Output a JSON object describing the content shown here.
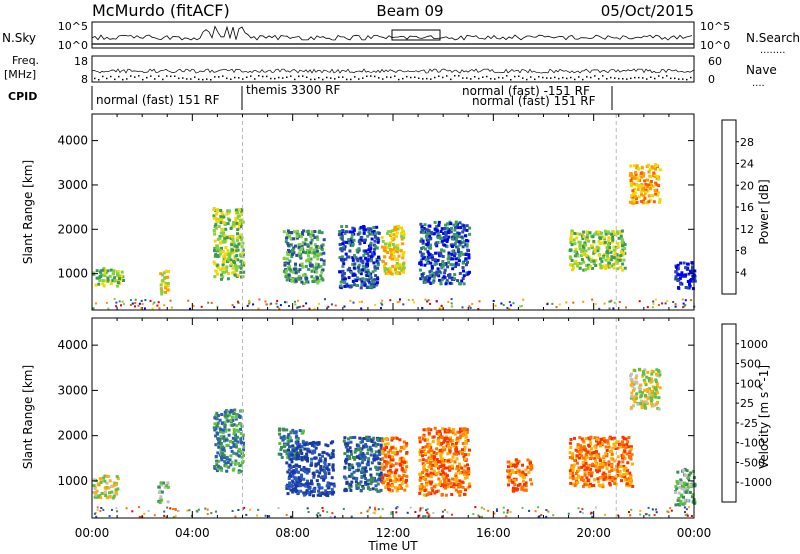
{
  "header": {
    "station": "McMurdo (fitACF)",
    "beam": "Beam 09",
    "date": "05/Oct/2015"
  },
  "top_panels": {
    "nsky_label": "N.Sky",
    "nsearch_label": "N.Search",
    "nsky_ticks": [
      "10^5",
      "10^0"
    ],
    "nsearch_ticks": [
      "10^5",
      "10^0"
    ],
    "freq_label": "Freq.",
    "freq_unit": "[MHz]",
    "freq_ticks": [
      "18",
      "8"
    ],
    "nave_label": "Nave",
    "nave_ticks": [
      "60",
      "0"
    ],
    "cpid_label": "CPID",
    "cpid_segments": [
      {
        "text": "normal (fast) 151 RF"
      },
      {
        "text": "themis 3300 RF"
      },
      {
        "text": "normal (fast) -151 RF"
      },
      {
        "text": "normal (fast) 151 RF"
      }
    ]
  },
  "chart_data": [
    {
      "type": "heatmap",
      "panel": "power",
      "ylabel": "Slant Range [km]",
      "xlabel": "Time UT",
      "x_ticks": [
        "00:00",
        "04:00",
        "08:00",
        "12:00",
        "16:00",
        "20:00",
        "00:00"
      ],
      "x_hours": [
        0,
        4,
        8,
        12,
        16,
        20,
        24
      ],
      "xlim": [
        0,
        24
      ],
      "y_ticks": [
        1000,
        2000,
        3000,
        4000
      ],
      "ylim": [
        180,
        4600
      ],
      "colorbar_label": "Power [dB]",
      "colorbar_ticks": [
        "28",
        "24",
        "20",
        "16",
        "12",
        "8",
        "4"
      ],
      "colorbar_colors": [
        "#e00000",
        "#ff5a00",
        "#ff9a00",
        "#f0d800",
        "#80d040",
        "#3a9a5a",
        "#2a4aa8",
        "#0000ff"
      ],
      "clusters": [
        {
          "t0": 0.0,
          "t1": 1.2,
          "r0": 750,
          "r1": 1150,
          "level": 4
        },
        {
          "t0": 2.6,
          "t1": 3.0,
          "r0": 550,
          "r1": 1100,
          "level": 3
        },
        {
          "t0": 4.8,
          "t1": 6.0,
          "r0": 900,
          "r1": 2500,
          "level": 4
        },
        {
          "t0": 7.6,
          "t1": 9.2,
          "r0": 800,
          "r1": 2000,
          "level": 5
        },
        {
          "t0": 9.8,
          "t1": 11.4,
          "r0": 700,
          "r1": 2100,
          "level": 6
        },
        {
          "t0": 11.5,
          "t1": 12.4,
          "r0": 1000,
          "r1": 2100,
          "level": 3
        },
        {
          "t0": 13.0,
          "t1": 15.0,
          "r0": 800,
          "r1": 2200,
          "level": 6
        },
        {
          "t0": 19.0,
          "t1": 21.2,
          "r0": 1100,
          "r1": 2000,
          "level": 4
        },
        {
          "t0": 21.4,
          "t1": 22.6,
          "r0": 2600,
          "r1": 3500,
          "level": 2
        },
        {
          "t0": 23.2,
          "t1": 24.0,
          "r0": 650,
          "r1": 1300,
          "level": 7
        }
      ]
    },
    {
      "type": "heatmap",
      "panel": "velocity",
      "ylabel": "Slant Range [km]",
      "xlabel": "Time UT",
      "x_ticks": [
        "00:00",
        "04:00",
        "08:00",
        "12:00",
        "16:00",
        "20:00",
        "00:00"
      ],
      "x_hours": [
        0,
        4,
        8,
        12,
        16,
        20,
        24
      ],
      "xlim": [
        0,
        24
      ],
      "y_ticks": [
        1000,
        2000,
        3000,
        4000
      ],
      "ylim": [
        180,
        4600
      ],
      "colorbar_label": "Velocity [m s^-1]",
      "colorbar_ticks": [
        "1000",
        "500",
        "100",
        "25",
        "-25",
        "-100",
        "-500",
        "-1000"
      ],
      "colorbar_colors": [
        "#1a3aa0",
        "#2a5ac0",
        "#3a8a5a",
        "#60c040",
        "#c0c0c0",
        "#ffb000",
        "#ff7000",
        "#ff3000",
        "#e00000"
      ],
      "clusters": [
        {
          "t0": 0.0,
          "t1": 1.0,
          "r0": 650,
          "r1": 1150,
          "level": 4
        },
        {
          "t0": 2.6,
          "t1": 3.0,
          "r0": 550,
          "r1": 1000,
          "level": 3
        },
        {
          "t0": 4.8,
          "t1": 6.0,
          "r0": 1200,
          "r1": 2600,
          "level": 2
        },
        {
          "t0": 7.4,
          "t1": 8.4,
          "r0": 1500,
          "r1": 2200,
          "level": 2
        },
        {
          "t0": 7.7,
          "t1": 9.6,
          "r0": 700,
          "r1": 1900,
          "level": 0
        },
        {
          "t0": 10.0,
          "t1": 11.5,
          "r0": 800,
          "r1": 2000,
          "level": 1
        },
        {
          "t0": 11.5,
          "t1": 12.5,
          "r0": 800,
          "r1": 2000,
          "level": 6
        },
        {
          "t0": 13.0,
          "t1": 15.0,
          "r0": 700,
          "r1": 2200,
          "level": 6
        },
        {
          "t0": 16.5,
          "t1": 17.5,
          "r0": 800,
          "r1": 1500,
          "level": 6
        },
        {
          "t0": 19.0,
          "t1": 21.5,
          "r0": 900,
          "r1": 2000,
          "level": 6
        },
        {
          "t0": 21.4,
          "t1": 22.6,
          "r0": 2600,
          "r1": 3500,
          "level": 4
        },
        {
          "t0": 23.2,
          "t1": 24.0,
          "r0": 500,
          "r1": 1300,
          "level": 3
        }
      ]
    }
  ]
}
